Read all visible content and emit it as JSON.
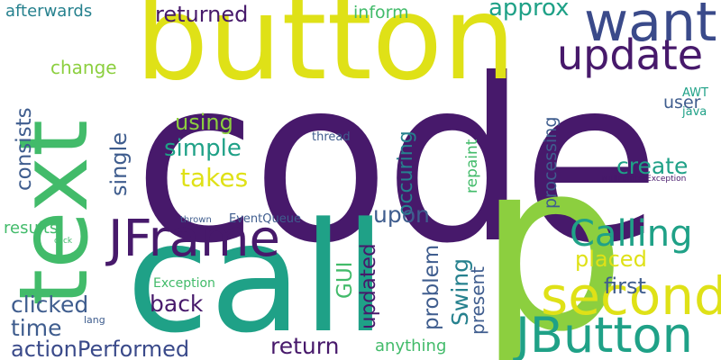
{
  "palette": {
    "dark_purple": "#47196b",
    "indigo": "#3a4a8a",
    "slate_blue": "#3f5d8e",
    "teal": "#26818e",
    "green_teal": "#1fa187",
    "green": "#42bb6a",
    "lime": "#8ccf3f",
    "yellow": "#dfe117"
  },
  "words": [
    "code",
    "text",
    "button",
    "call",
    "p",
    "want",
    "second",
    "update",
    "JFrame",
    "JButton",
    "Calling",
    "returned",
    "approx",
    "afterwards",
    "inform",
    "change",
    "consists",
    "single",
    "using",
    "simple",
    "takes",
    "create",
    "user",
    "AWT",
    "java",
    "repaint",
    "occuring",
    "processing",
    "thread",
    "NullPointerException",
    "placed",
    "first",
    "upon",
    "GUI",
    "Swing",
    "updated",
    "problem",
    "present",
    "results",
    "click",
    "thrown",
    "EventQueue",
    "Exception",
    "clicked",
    "back",
    "time",
    "lang",
    "actionPerformed",
    "return",
    "anything"
  ]
}
